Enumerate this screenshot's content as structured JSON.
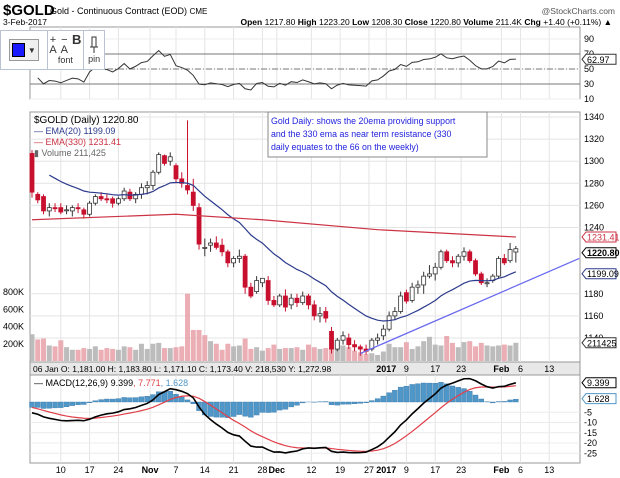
{
  "header": {
    "symbol": "$GOLD",
    "name": "Gold - Continuous Contract (EOD)",
    "exchange": "CME",
    "brand": "@StockCharts.com",
    "date": "3-Feb-2017",
    "open_label": "Open",
    "open": "1217.80",
    "high_label": "High",
    "high": "1223.20",
    "low_label": "Low",
    "low": "1208.30",
    "close_label": "Close",
    "close": "1220.80",
    "volume_label": "Volume",
    "volume": "211.4K",
    "chg_label": "Chg",
    "chg": "+1.40 (+0.11%) ▲"
  },
  "toolbar": {
    "color": "#1a1aff",
    "font_label": "font",
    "pin_label": "pin",
    "plus": "+",
    "minus": "−",
    "a": "A",
    "bold": "B",
    "dropdown": "▼"
  },
  "annotation": {
    "lines": [
      "Gold Daily: shows the 20ema providing support",
      "and the 330 ema as near term resistance (330",
      "daily equates to the 66 on the weekly)"
    ],
    "color": "#2222dd"
  },
  "chart_data": [
    {
      "type": "line",
      "panel": "rsi",
      "y_ticks": [
        "90",
        "70",
        "50",
        "30",
        "10"
      ],
      "last_value": "62.97",
      "levels": [
        70,
        50,
        30
      ]
    },
    {
      "type": "candlestick",
      "panel": "price",
      "legend": {
        "symbol": "$GOLD (Daily) 1220.80",
        "ema20": "EMA(20) 1199.09",
        "ema330": "EMA(330) 1231.41",
        "volume": "Volume 211,425"
      },
      "y_ticks": [
        "1340",
        "1320",
        "1300",
        "1280",
        "1260",
        "1240",
        "1180",
        "1160",
        "1140"
      ],
      "ylim": [
        1120,
        1345
      ],
      "volume_ticks": [
        "800K",
        "600K",
        "400K",
        "200K"
      ],
      "tags": {
        "ema330": "1231.41",
        "close": "1220.80",
        "ema20": "1199.09",
        "volume": "211425"
      },
      "colors": {
        "up": "#ffffff",
        "down": "#c8102e",
        "ema20": "#2b3a8c",
        "ema330": "#cc3344",
        "trendline": "#6a6af0",
        "vol_up": "#b0b0b0",
        "vol_down": "#e8a0a8"
      },
      "candles": [
        [
          1307,
          1310,
          1267,
          1272
        ],
        [
          1270,
          1272,
          1262,
          1265
        ],
        [
          1268,
          1270,
          1252,
          1255
        ],
        [
          1255,
          1262,
          1250,
          1258
        ],
        [
          1258,
          1262,
          1254,
          1257
        ],
        [
          1258,
          1262,
          1252,
          1254
        ],
        [
          1256,
          1260,
          1252,
          1256
        ],
        [
          1255,
          1260,
          1250,
          1258
        ],
        [
          1258,
          1262,
          1253,
          1257
        ],
        [
          1256,
          1258,
          1248,
          1252
        ],
        [
          1252,
          1264,
          1250,
          1262
        ],
        [
          1262,
          1270,
          1260,
          1268
        ],
        [
          1268,
          1272,
          1264,
          1266
        ],
        [
          1266,
          1270,
          1262,
          1265
        ],
        [
          1266,
          1268,
          1258,
          1262
        ],
        [
          1262,
          1268,
          1260,
          1266
        ],
        [
          1266,
          1276,
          1264,
          1273
        ],
        [
          1272,
          1275,
          1264,
          1266
        ],
        [
          1266,
          1272,
          1262,
          1270
        ],
        [
          1270,
          1280,
          1266,
          1276
        ],
        [
          1276,
          1282,
          1270,
          1278
        ],
        [
          1278,
          1292,
          1274,
          1290
        ],
        [
          1290,
          1308,
          1288,
          1306
        ],
        [
          1305,
          1306,
          1296,
          1298
        ],
        [
          1300,
          1308,
          1296,
          1304
        ],
        [
          1296,
          1298,
          1280,
          1284
        ],
        [
          1284,
          1290,
          1276,
          1280
        ],
        [
          1278,
          1337,
          1270,
          1274
        ],
        [
          1272,
          1284,
          1255,
          1260
        ],
        [
          1258,
          1262,
          1220,
          1225
        ],
        [
          1222,
          1230,
          1214,
          1222
        ],
        [
          1224,
          1230,
          1218,
          1226
        ],
        [
          1226,
          1232,
          1220,
          1222
        ],
        [
          1224,
          1230,
          1214,
          1218
        ],
        [
          1218,
          1220,
          1204,
          1208
        ],
        [
          1208,
          1214,
          1204,
          1212
        ],
        [
          1212,
          1220,
          1208,
          1214
        ],
        [
          1214,
          1216,
          1180,
          1186
        ],
        [
          1186,
          1190,
          1176,
          1178
        ],
        [
          1182,
          1196,
          1180,
          1192
        ],
        [
          1190,
          1194,
          1186,
          1194
        ],
        [
          1192,
          1196,
          1170,
          1174
        ],
        [
          1174,
          1178,
          1168,
          1170
        ],
        [
          1170,
          1180,
          1168,
          1178
        ],
        [
          1178,
          1184,
          1164,
          1168
        ],
        [
          1170,
          1180,
          1166,
          1176
        ],
        [
          1176,
          1180,
          1168,
          1172
        ],
        [
          1172,
          1182,
          1170,
          1178
        ],
        [
          1178,
          1180,
          1166,
          1170
        ],
        [
          1170,
          1174,
          1156,
          1160
        ],
        [
          1160,
          1168,
          1154,
          1162
        ],
        [
          1164,
          1168,
          1154,
          1158
        ],
        [
          1146,
          1150,
          1126,
          1130
        ],
        [
          1130,
          1140,
          1128,
          1138
        ],
        [
          1138,
          1146,
          1134,
          1142
        ],
        [
          1140,
          1144,
          1130,
          1134
        ],
        [
          1134,
          1138,
          1128,
          1132
        ],
        [
          1132,
          1134,
          1124,
          1130
        ],
        [
          1130,
          1134,
          1125,
          1128
        ],
        [
          1130,
          1140,
          1128,
          1138
        ],
        [
          1138,
          1144,
          1134,
          1140
        ],
        [
          1142,
          1152,
          1138,
          1148
        ],
        [
          1148,
          1164,
          1146,
          1160
        ],
        [
          1160,
          1168,
          1156,
          1164
        ],
        [
          1164,
          1182,
          1162,
          1178
        ],
        [
          1181,
          1183.8,
          1171.1,
          1173.4
        ],
        [
          1174,
          1190,
          1172,
          1186
        ],
        [
          1186,
          1192,
          1180,
          1188
        ],
        [
          1188,
          1200,
          1180,
          1196
        ],
        [
          1196,
          1206,
          1194,
          1198
        ],
        [
          1198,
          1208,
          1192,
          1204
        ],
        [
          1204,
          1220,
          1202,
          1218
        ],
        [
          1218,
          1220,
          1208,
          1210
        ],
        [
          1210,
          1214,
          1204,
          1208
        ],
        [
          1208,
          1216,
          1204,
          1214
        ],
        [
          1214,
          1222,
          1210,
          1218
        ],
        [
          1218,
          1220,
          1208,
          1210
        ],
        [
          1210,
          1212,
          1196,
          1198
        ],
        [
          1198,
          1200,
          1188,
          1190
        ],
        [
          1190,
          1194,
          1186,
          1190
        ],
        [
          1192,
          1198,
          1190,
          1196
        ],
        [
          1196,
          1214,
          1194,
          1212
        ],
        [
          1212,
          1216,
          1206,
          1208
        ],
        [
          1210,
          1226,
          1208,
          1220
        ],
        [
          1217.8,
          1223.2,
          1208.3,
          1220.8
        ]
      ],
      "volumes": [
        310000,
        250000,
        260000,
        180000,
        170000,
        240000,
        160000,
        130000,
        130000,
        150000,
        140000,
        170000,
        130000,
        150000,
        140000,
        130000,
        170000,
        160000,
        130000,
        200000,
        140000,
        200000,
        210000,
        150000,
        150000,
        160000,
        170000,
        780000,
        360000,
        360000,
        300000,
        230000,
        200000,
        130000,
        200000,
        170000,
        180000,
        260000,
        140000,
        160000,
        120000,
        150000,
        190000,
        140000,
        150000,
        150000,
        160000,
        130000,
        190000,
        160000,
        140000,
        150000,
        280000,
        230000,
        180000,
        160000,
        120000,
        100000,
        80000,
        90000,
        70000,
        110000,
        200000,
        160000,
        160000,
        218530,
        140000,
        170000,
        230000,
        280000,
        190000,
        180000,
        290000,
        210000,
        160000,
        220000,
        230000,
        170000,
        210000,
        180000,
        170000,
        180000,
        190000,
        180000,
        211425
      ],
      "ema330": [
        [
          0,
          1247
        ],
        [
          25,
          1252
        ],
        [
          40,
          1247
        ],
        [
          60,
          1238
        ],
        [
          84,
          1231.41
        ]
      ],
      "trendline": [
        [
          57,
          1126
        ],
        [
          95,
          1212
        ]
      ],
      "hover_info": "06 Jan O: 1,181.00   H: 1,183.80   L: 1,171.10   C: 1,173.40   V: 218,530   Y: 1,272.98"
    },
    {
      "type": "line",
      "panel": "macd",
      "legend": {
        "name": "MACD(12,26,9)",
        "macd": "9.399",
        "signal": "7.771",
        "histogram": "1.628"
      },
      "y_ticks": [
        "-5",
        "-10",
        "-15",
        "-20",
        "-25"
      ],
      "tags": {
        "macd": "9.399",
        "histogram": "1.628"
      },
      "colors": {
        "macd": "#000000",
        "signal": "#e0404a",
        "histogram": "#4f97c8"
      }
    }
  ],
  "x_axis": {
    "ticks": [
      {
        "label": "10",
        "index": 5,
        "bold": false
      },
      {
        "label": "17",
        "index": 10,
        "bold": false
      },
      {
        "label": "24",
        "index": 15,
        "bold": false
      },
      {
        "label": "Nov",
        "index": 20.5,
        "bold": true
      },
      {
        "label": "7",
        "index": 25,
        "bold": false
      },
      {
        "label": "14",
        "index": 30,
        "bold": false
      },
      {
        "label": "21",
        "index": 35,
        "bold": false
      },
      {
        "label": "28",
        "index": 40,
        "bold": false
      },
      {
        "label": "Dec",
        "index": 42.5,
        "bold": true
      },
      {
        "label": "12",
        "index": 48.5,
        "bold": false
      },
      {
        "label": "19",
        "index": 53.5,
        "bold": false
      },
      {
        "label": "27",
        "index": 58.5,
        "bold": false
      },
      {
        "label": "2017",
        "index": 61.5,
        "bold": true
      },
      {
        "label": "9",
        "index": 65,
        "bold": false
      },
      {
        "label": "17",
        "index": 70,
        "bold": false
      },
      {
        "label": "23",
        "index": 74.5,
        "bold": false
      },
      {
        "label": "Feb",
        "index": 81.5,
        "bold": true
      },
      {
        "label": "6",
        "index": 84.8,
        "bold": false
      },
      {
        "label": "13",
        "index": 89.8,
        "bold": false
      }
    ]
  }
}
